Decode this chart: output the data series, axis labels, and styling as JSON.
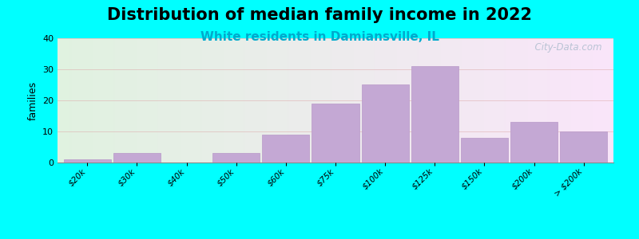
{
  "title": "Distribution of median family income in 2022",
  "subtitle": "White residents in Damiansville, IL",
  "ylabel": "families",
  "background_color": "#00FFFF",
  "bar_color": "#c4a8d4",
  "bar_edge_color": "#b898c8",
  "categories": [
    "$20k",
    "$30k",
    "$40k",
    "$50k",
    "$60k",
    "$75k",
    "$100k",
    "$125k",
    "$150k",
    "$200k",
    "> $200k"
  ],
  "values": [
    1,
    3,
    0,
    3,
    9,
    19,
    25,
    31,
    8,
    13,
    10
  ],
  "ylim": [
    0,
    40
  ],
  "yticks": [
    0,
    10,
    20,
    30,
    40
  ],
  "title_fontsize": 15,
  "subtitle_fontsize": 11,
  "subtitle_color": "#00AACC",
  "ylabel_fontsize": 9,
  "watermark": "  City-Data.com"
}
